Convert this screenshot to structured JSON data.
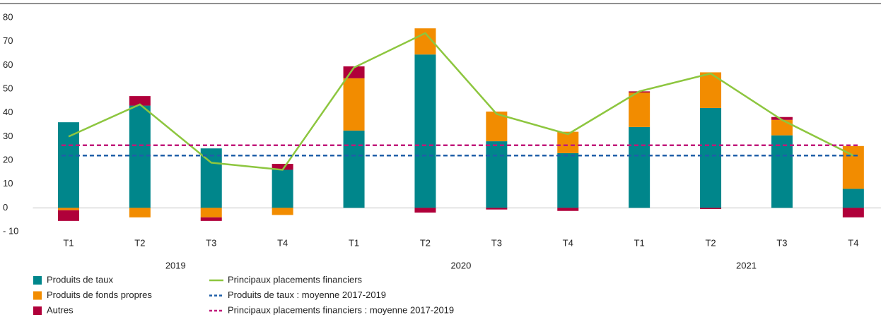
{
  "chart_data": {
    "type": "bar",
    "categories": [
      "T1",
      "T2",
      "T3",
      "T4",
      "T1",
      "T2",
      "T3",
      "T4",
      "T1",
      "T2",
      "T3",
      "T4"
    ],
    "groups": [
      "2019",
      "2020",
      "2021"
    ],
    "ylim": [
      -10,
      80
    ],
    "yticks": [
      {
        "value": -10,
        "label": "- 10"
      },
      0,
      10,
      20,
      30,
      40,
      50,
      60,
      70,
      80
    ],
    "series": [
      {
        "name": "Produits de taux",
        "kind": "bar",
        "color": "#00868b",
        "values": [
          36,
          43,
          25,
          16,
          32.5,
          64.5,
          28,
          23,
          34,
          42,
          30.5,
          8
        ]
      },
      {
        "name": "Produits de fonds propres",
        "kind": "bar",
        "color": "#f28c00",
        "values": [
          -1,
          -4,
          -4,
          -3,
          22,
          11,
          12.5,
          9,
          14.5,
          15,
          6.5,
          18
        ]
      },
      {
        "name": "Autres",
        "kind": "bar",
        "color": "#b0003a",
        "values": [
          -4.5,
          4,
          -1.5,
          2.5,
          5,
          -2,
          -0.7,
          -1.3,
          0.5,
          -0.5,
          1.2,
          -4
        ]
      },
      {
        "name": "Principaux placements financiers",
        "kind": "line",
        "color": "#8dc63f",
        "values": [
          30,
          43.5,
          19,
          16,
          59,
          73.5,
          39.5,
          31,
          49,
          56.5,
          37,
          22
        ]
      },
      {
        "name": "Produits de taux : moyenne 2017-2019",
        "kind": "dashed",
        "color": "#1f5fa8",
        "value": 22
      },
      {
        "name": "Principaux placements financiers : moyenne 2017-2019",
        "kind": "dashed",
        "color": "#c0187a",
        "value": 26.3
      }
    ]
  }
}
